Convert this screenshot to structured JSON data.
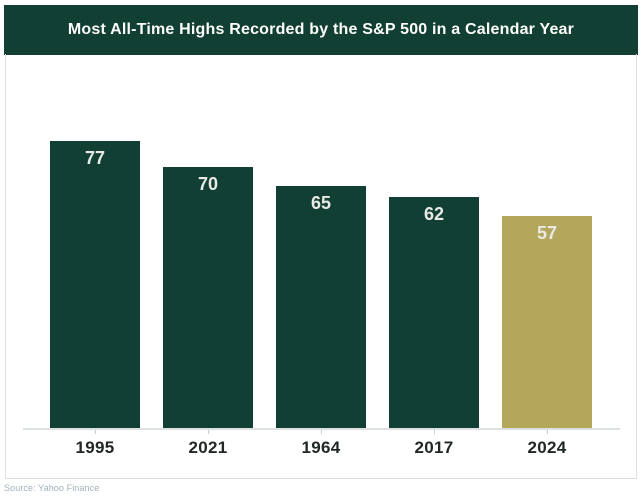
{
  "title": "Most All-Time Highs Recorded by the S&P 500 in a Calendar Year",
  "source": "Source: Yahoo Finance",
  "colors": {
    "banner_bg": "#123f33",
    "banner_text": "#fdfdfa",
    "bar_default": "#123f33",
    "bar_highlight": "#b3a75c",
    "bar_label_text": "#e9e9e6",
    "axis_line": "#dbe0e0",
    "x_label_text": "#212726",
    "frame_border": "#dedede",
    "source_text": "#a2b3b8"
  },
  "chart_data": {
    "type": "bar",
    "title": "Most All-Time Highs Recorded by the S&P 500 in a Calendar Year",
    "categories": [
      "1995",
      "2021",
      "1964",
      "2017",
      "2024"
    ],
    "values": [
      77,
      70,
      65,
      62,
      57
    ],
    "highlighted_category": "2024",
    "xlabel": "",
    "ylabel": "",
    "ylim": [
      0,
      82
    ],
    "grid": false,
    "legend": false,
    "data_labels": true,
    "source": "Source: Yahoo Finance"
  }
}
